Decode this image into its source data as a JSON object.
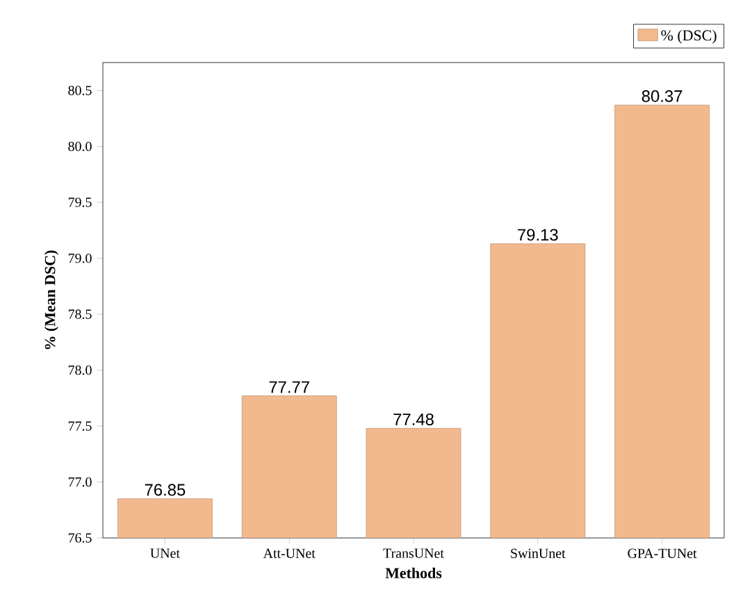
{
  "chart_data": {
    "type": "bar",
    "xlabel": "Methods",
    "ylabel": "% (Mean DSC)",
    "categories": [
      "UNet",
      "Att-UNet",
      "TransUNet",
      "SwinUnet",
      "GPA-TUNet"
    ],
    "series": [
      {
        "name": "% (DSC)",
        "color": "#f2b98f",
        "values": [
          76.85,
          77.77,
          77.48,
          79.13,
          80.37
        ]
      }
    ],
    "ylim": [
      76.5,
      80.75
    ],
    "yticks": [
      76.5,
      {
        "value": 77.0,
        "label": "77.0"
      },
      77.5,
      {
        "value": 78.0,
        "label": "78.0"
      },
      78.5,
      {
        "value": 79.0,
        "label": "79.0"
      },
      79.5,
      {
        "value": 80.0,
        "label": "80.0"
      },
      80.5
    ],
    "data_labels": true,
    "legend": "top right",
    "grid": false
  }
}
